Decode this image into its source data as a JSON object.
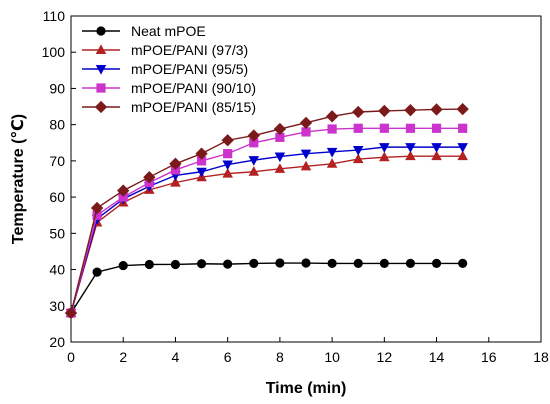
{
  "chart_data": {
    "type": "line",
    "xlabel": "Time (min)",
    "ylabel": "Temperature (℃)",
    "xlim": [
      0,
      18
    ],
    "ylim": [
      20,
      110
    ],
    "xticks": [
      0,
      2,
      4,
      6,
      8,
      10,
      12,
      14,
      16,
      18
    ],
    "yticks": [
      20,
      30,
      40,
      50,
      60,
      70,
      80,
      90,
      100,
      110
    ],
    "grid": false,
    "legend_position": "top-left",
    "x": [
      0,
      1,
      2,
      3,
      4,
      5,
      6,
      7,
      8,
      9,
      10,
      11,
      12,
      13,
      14,
      15
    ],
    "series": [
      {
        "name": "Neat mPOE",
        "color": "#000000",
        "marker": "circle",
        "values": [
          28,
          39.3,
          41.1,
          41.4,
          41.4,
          41.6,
          41.5,
          41.7,
          41.8,
          41.8,
          41.7,
          41.7,
          41.7,
          41.7,
          41.7,
          41.7
        ]
      },
      {
        "name": "mPOE/PANI (97/3)",
        "color": "#b22222",
        "marker": "triangle-up",
        "values": [
          28,
          53,
          58.5,
          62,
          64,
          65.5,
          66.5,
          67,
          67.8,
          68.5,
          69.2,
          70.5,
          71,
          71.3,
          71.3,
          71.3
        ]
      },
      {
        "name": "mPOE/PANI (95/5)",
        "color": "#0000cc",
        "marker": "triangle-down",
        "values": [
          28,
          54,
          59.5,
          63,
          66,
          67,
          69,
          70.2,
          71.2,
          72,
          72.5,
          73,
          73.8,
          73.8,
          73.8,
          73.8
        ]
      },
      {
        "name": "mPOE/PANI (90/10)",
        "color": "#cc33cc",
        "marker": "square",
        "values": [
          28,
          55,
          60,
          64,
          67.5,
          70,
          72,
          75,
          76.5,
          78,
          78.8,
          79,
          79,
          79,
          79,
          79
        ]
      },
      {
        "name": "mPOE/PANI (85/15)",
        "color": "#7b1a1a",
        "marker": "diamond",
        "values": [
          28,
          57,
          61.8,
          65.5,
          69.2,
          72,
          75.7,
          77,
          78.8,
          80.5,
          82.3,
          83.5,
          83.8,
          84,
          84.2,
          84.3
        ]
      }
    ]
  }
}
